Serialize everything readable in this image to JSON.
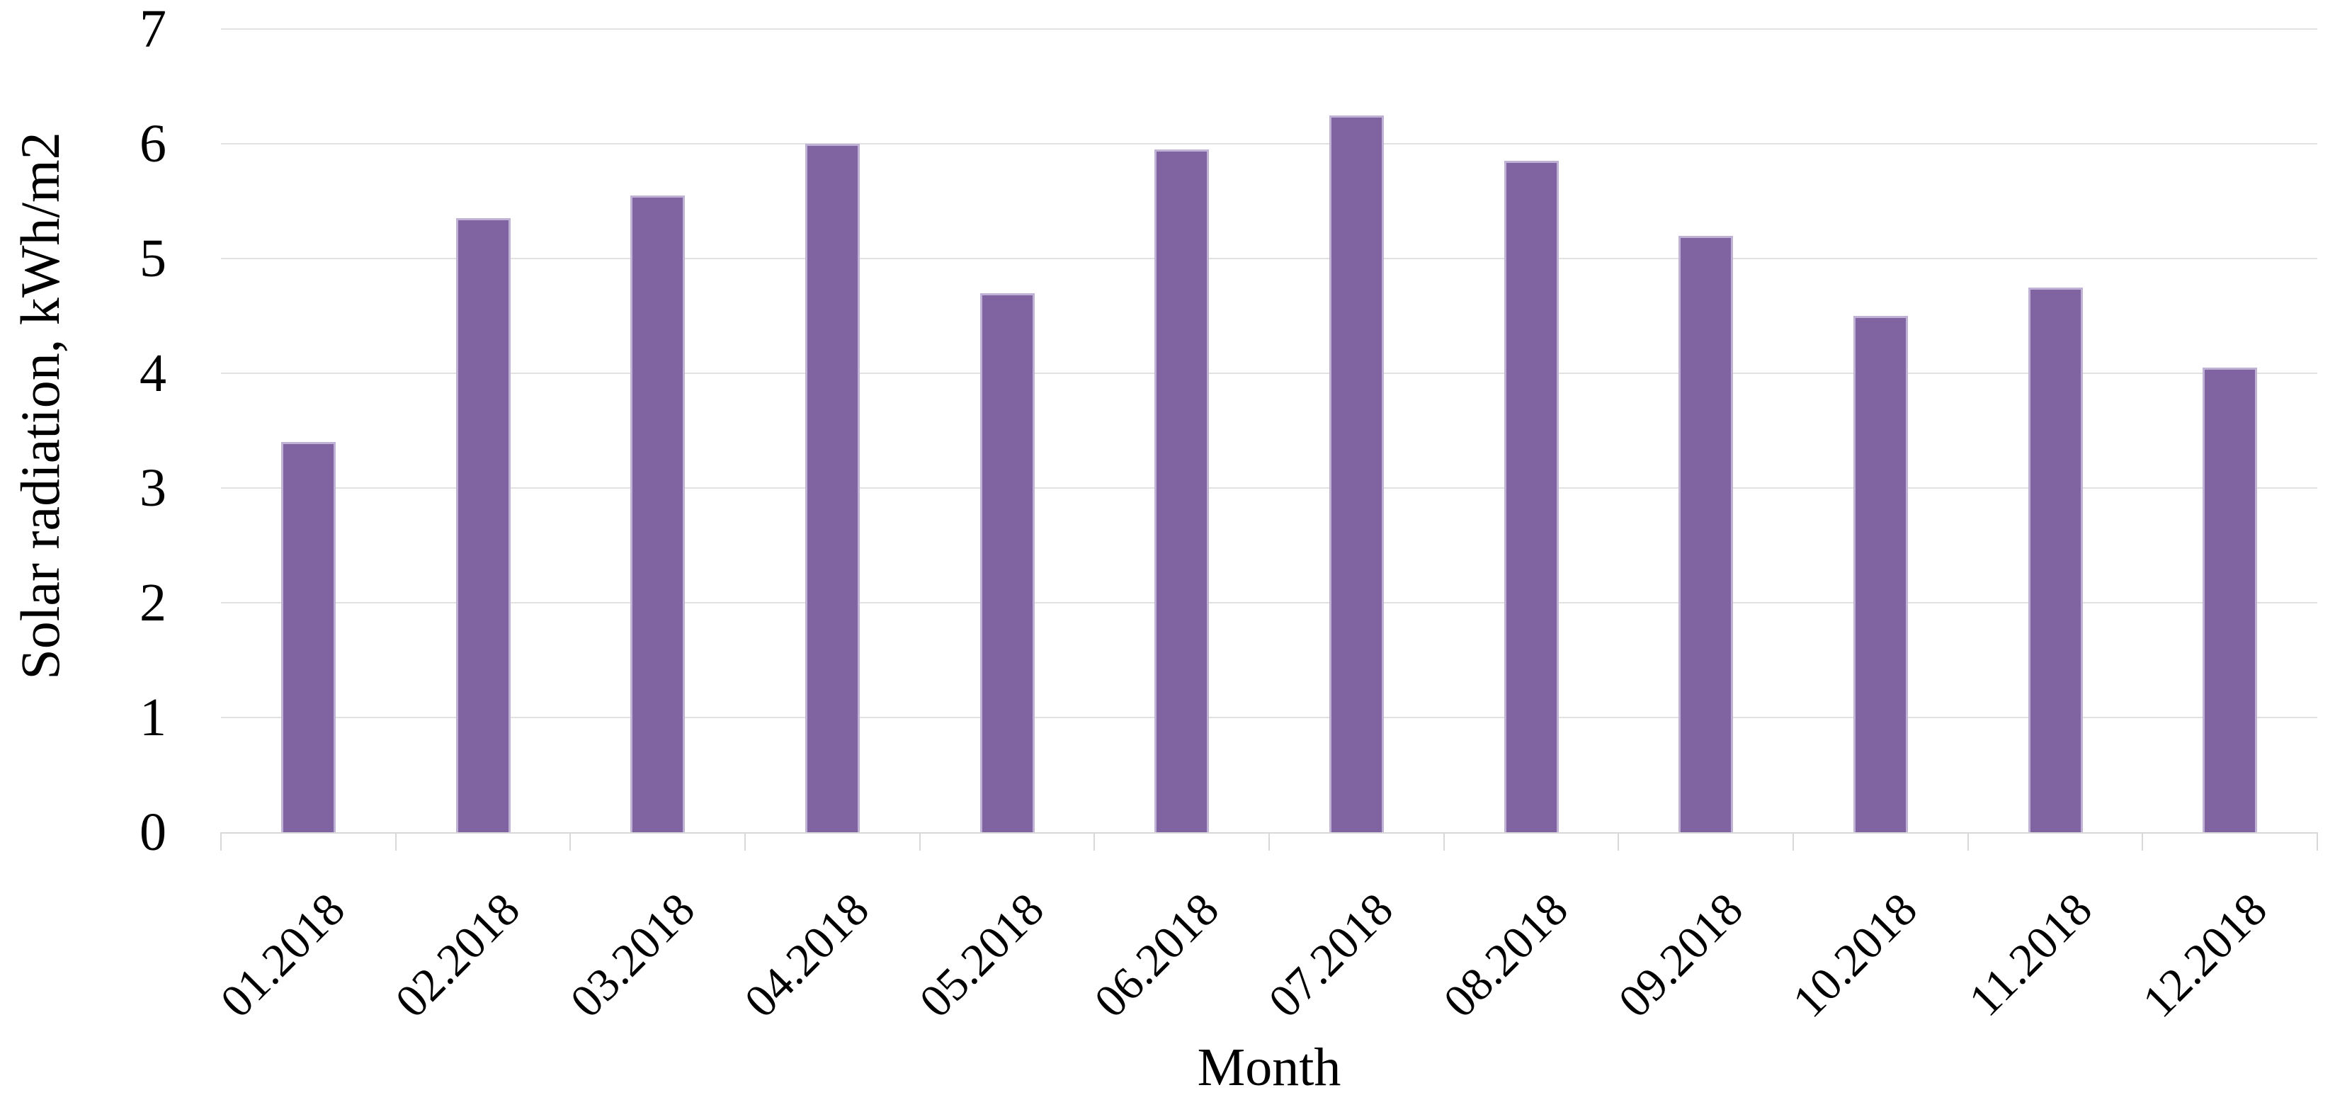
{
  "chart_data": {
    "type": "bar",
    "title": "",
    "xlabel": "Month",
    "ylabel": "Solar radiation, kWh/m2",
    "categories": [
      "01.2018",
      "02.2018",
      "03.2018",
      "04.2018",
      "05.2018",
      "06.2018",
      "07.2018",
      "08.2018",
      "09.2018",
      "10.2018",
      "11.2018",
      "12.2018"
    ],
    "values": [
      3.4,
      5.35,
      5.55,
      6.0,
      4.7,
      5.95,
      6.25,
      5.85,
      5.2,
      4.5,
      4.75,
      4.05
    ],
    "series_name": "Solar radiation",
    "ylim": [
      0,
      7
    ],
    "yticks": [
      0,
      1,
      2,
      3,
      4,
      5,
      6,
      7
    ],
    "grid": true,
    "legend": false,
    "bar_color": "#8064a2",
    "bar_edge_color": "#bfb2d4",
    "gridline_color": "#e2e2e2",
    "axis_color": "#d8d8d8",
    "text_color": "#000000",
    "background_color": "#ffffff"
  }
}
